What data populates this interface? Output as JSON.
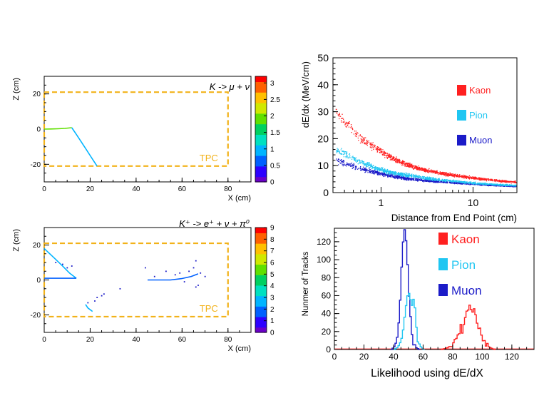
{
  "colors": {
    "kaon": "#ff2020",
    "pion": "#1fc6f2",
    "muon": "#1b1bc8",
    "tpc": "#f2b21a",
    "palette": [
      "#6a00c8",
      "#2d00ff",
      "#0060ff",
      "#00b4ff",
      "#00e0c0",
      "#00d060",
      "#60e000",
      "#d0e800",
      "#ffc000",
      "#ff6000",
      "#ff0000"
    ]
  },
  "chart_data": [
    {
      "type": "scatter",
      "title": "K -> μ + ν",
      "xlabel": "X (cm)",
      "ylabel": "Z (cm)",
      "xlim": [
        0,
        90
      ],
      "ylim": [
        -30,
        30
      ],
      "x_ticks": [
        0,
        20,
        40,
        60,
        80
      ],
      "y_ticks": [
        -20,
        0,
        20
      ],
      "annotation": "TPC",
      "tpc_box": {
        "x": [
          0,
          80
        ],
        "z": [
          -21,
          21
        ]
      },
      "colorbar": {
        "range": [
          0,
          3.2
        ],
        "ticks": [
          "0",
          "0.5",
          "1",
          "1.5",
          "2",
          "2.5",
          "3"
        ]
      },
      "tracks": [
        {
          "points": [
            [
              0,
              0
            ],
            [
              3,
              0.1
            ],
            [
              6,
              0.2
            ],
            [
              9,
              0.4
            ],
            [
              12,
              0.8
            ]
          ],
          "value": 1.8
        },
        {
          "points": [
            [
              12,
              0.8
            ],
            [
              14,
              -3
            ],
            [
              16,
              -7
            ],
            [
              18,
              -11
            ],
            [
              20,
              -15
            ],
            [
              22,
              -19
            ],
            [
              23,
              -21
            ]
          ],
          "value": 1.1
        }
      ]
    },
    {
      "type": "scatter",
      "title": "K⁺ -> e⁺ + ν + π⁰",
      "xlabel": "X (cm)",
      "ylabel": "Z (cm)",
      "xlim": [
        0,
        90
      ],
      "ylim": [
        -30,
        30
      ],
      "x_ticks": [
        0,
        20,
        40,
        60,
        80
      ],
      "y_ticks": [
        -20,
        0,
        20
      ],
      "annotation": "TPC",
      "tpc_box": {
        "x": [
          0,
          80
        ],
        "z": [
          -21,
          21
        ]
      },
      "colorbar": {
        "range": [
          0,
          9
        ],
        "ticks": [
          "0",
          "1",
          "2",
          "3",
          "4",
          "5",
          "6",
          "7",
          "8",
          "9"
        ]
      },
      "tracks": [
        {
          "points": [
            [
              0,
              18
            ],
            [
              4,
              13
            ],
            [
              8,
              8
            ],
            [
              11,
              4
            ],
            [
              14,
              1
            ]
          ],
          "value": 2.3
        },
        {
          "points": [
            [
              0,
              1
            ],
            [
              5,
              1
            ],
            [
              10,
              1
            ],
            [
              14,
              1
            ]
          ],
          "value": 1.6
        },
        {
          "points": [
            [
              18,
              -14
            ],
            [
              19,
              -16
            ],
            [
              20,
              -17
            ],
            [
              21,
              -18
            ]
          ],
          "value": 2.5
        },
        {
          "points": [
            [
              45,
              0
            ],
            [
              50,
              0
            ],
            [
              55,
              0
            ],
            [
              60,
              0.8
            ],
            [
              64,
              2
            ],
            [
              67,
              3.5
            ]
          ],
          "value": 2.2
        }
      ],
      "scatter": [
        [
          5,
          10
        ],
        [
          8,
          9
        ],
        [
          10,
          7
        ],
        [
          12,
          8
        ],
        [
          23,
          -10
        ],
        [
          25,
          -9
        ],
        [
          19,
          -13
        ],
        [
          22,
          -12
        ],
        [
          26,
          -8
        ],
        [
          33,
          -5
        ],
        [
          44,
          7
        ],
        [
          48,
          2
        ],
        [
          53,
          5
        ],
        [
          57,
          3
        ],
        [
          59,
          4
        ],
        [
          61,
          -1
        ],
        [
          63,
          5
        ],
        [
          65,
          7
        ],
        [
          66,
          11
        ],
        [
          67,
          -3
        ],
        [
          68,
          4
        ],
        [
          66,
          -4
        ],
        [
          70,
          2
        ]
      ]
    },
    {
      "type": "scatter",
      "xlabel": "Distance from End Point (cm)",
      "ylabel": "dE/dx (MeV/cm)",
      "xscale": "log",
      "xlim": [
        0.3,
        30
      ],
      "ylim": [
        0,
        50
      ],
      "x_tick_labels": [
        "1",
        "10"
      ],
      "y_ticks": [
        0,
        10,
        20,
        30,
        40,
        50
      ],
      "legend": [
        {
          "label": "Kaon",
          "color": "#ff2020"
        },
        {
          "label": "Pion",
          "color": "#1fc6f2"
        },
        {
          "label": "Muon",
          "color": "#1b1bc8"
        }
      ],
      "series": [
        {
          "name": "Kaon",
          "centers": [
            [
              0.32,
              30
            ],
            [
              0.6,
              20
            ],
            [
              0.9,
              16.5
            ],
            [
              1.2,
              13.5
            ],
            [
              1.5,
              12
            ],
            [
              1.9,
              10.5
            ],
            [
              2.3,
              9.5
            ],
            [
              2.8,
              8.7
            ],
            [
              3.5,
              8
            ],
            [
              4.5,
              7.3
            ],
            [
              5.5,
              6.8
            ],
            [
              7,
              6.3
            ],
            [
              9,
              5.8
            ],
            [
              12,
              5.2
            ],
            [
              16,
              4.8
            ],
            [
              22,
              4.3
            ],
            [
              29,
              4
            ]
          ]
        },
        {
          "name": "Pion",
          "centers": [
            [
              0.32,
              16
            ],
            [
              0.6,
              11.5
            ],
            [
              0.9,
              9
            ],
            [
              1.2,
              7.8
            ],
            [
              1.6,
              7
            ],
            [
              2,
              6.5
            ],
            [
              3,
              5.6
            ],
            [
              4,
              5
            ],
            [
              6,
              4.4
            ],
            [
              9,
              3.8
            ],
            [
              14,
              3.3
            ],
            [
              20,
              3
            ],
            [
              29,
              2.8
            ]
          ]
        },
        {
          "name": "Muon",
          "centers": [
            [
              0.32,
              12
            ],
            [
              0.6,
              9
            ],
            [
              0.9,
              7.5
            ],
            [
              1.2,
              6.5
            ],
            [
              1.6,
              5.8
            ],
            [
              2,
              5.2
            ],
            [
              3,
              4.6
            ],
            [
              4,
              4.2
            ],
            [
              6,
              3.8
            ],
            [
              9,
              3.4
            ],
            [
              14,
              3
            ],
            [
              20,
              2.7
            ],
            [
              29,
              2.5
            ]
          ]
        }
      ]
    },
    {
      "type": "line",
      "xlabel": "Likelihood using dE/dX",
      "ylabel": "Nunmer of Tracks",
      "xlim": [
        0,
        135
      ],
      "ylim": [
        0,
        135
      ],
      "x_ticks": [
        0,
        20,
        40,
        60,
        80,
        100,
        120
      ],
      "y_ticks": [
        0,
        20,
        40,
        60,
        80,
        100,
        120
      ],
      "legend": [
        {
          "label": "Kaon",
          "color": "#ff2020"
        },
        {
          "label": "Pion",
          "color": "#1fc6f2"
        },
        {
          "label": "Muon",
          "color": "#1b1bc8"
        }
      ],
      "series": [
        {
          "name": "Muon",
          "peaks": [
            [
              38,
              0
            ],
            [
              40,
              3
            ],
            [
              42,
              12
            ],
            [
              43,
              28
            ],
            [
              44,
              55
            ],
            [
              45,
              90
            ],
            [
              46,
              120
            ],
            [
              47,
              133
            ],
            [
              48,
              120
            ],
            [
              49,
              95
            ],
            [
              50,
              60
            ],
            [
              51,
              35
            ],
            [
              52,
              15
            ],
            [
              53,
              6
            ],
            [
              55,
              2
            ],
            [
              57,
              0
            ]
          ]
        },
        {
          "name": "Pion",
          "peaks": [
            [
              40,
              0
            ],
            [
              42,
              2
            ],
            [
              44,
              8
            ],
            [
              46,
              20
            ],
            [
              47,
              35
            ],
            [
              48,
              50
            ],
            [
              49,
              60
            ],
            [
              50,
              63
            ],
            [
              51,
              55
            ],
            [
              52,
              48
            ],
            [
              53,
              55
            ],
            [
              54,
              45
            ],
            [
              55,
              25
            ],
            [
              56,
              10
            ],
            [
              58,
              3
            ],
            [
              60,
              0
            ]
          ]
        },
        {
          "name": "Kaon",
          "peaks": [
            [
              72,
              0
            ],
            [
              76,
              2
            ],
            [
              80,
              6
            ],
            [
              83,
              16
            ],
            [
              85,
              25
            ],
            [
              86,
              20
            ],
            [
              87,
              30
            ],
            [
              88,
              35
            ],
            [
              89,
              40
            ],
            [
              90,
              45
            ],
            [
              91,
              47
            ],
            [
              92,
              46
            ],
            [
              93,
              42
            ],
            [
              94,
              45
            ],
            [
              95,
              38
            ],
            [
              96,
              30
            ],
            [
              97,
              22
            ],
            [
              98,
              24
            ],
            [
              99,
              15
            ],
            [
              100,
              10
            ],
            [
              102,
              5
            ],
            [
              105,
              2
            ],
            [
              108,
              0
            ]
          ]
        }
      ]
    }
  ]
}
